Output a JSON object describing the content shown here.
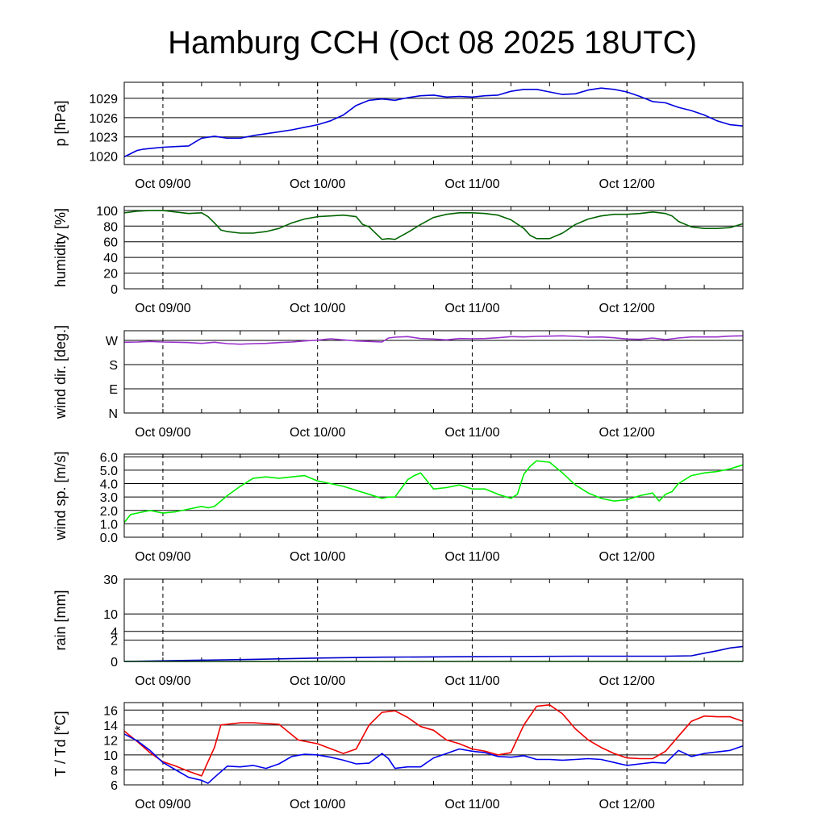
{
  "title": "Hamburg CCH (Oct 08 2025 18UTC)",
  "chart_data": {
    "type": "line",
    "title": "Hamburg CCH (Oct 08 2025 18UTC)",
    "x_range_hours": [
      0,
      96
    ],
    "x_ticks": [
      {
        "hour": 6,
        "label": "Oct 09/00"
      },
      {
        "hour": 30,
        "label": "Oct 10/00"
      },
      {
        "hour": 54,
        "label": "Oct 11/00"
      },
      {
        "hour": 78,
        "label": "Oct 12/00"
      }
    ],
    "panels": [
      {
        "id": "pressure",
        "ylabel": "p [hPa]",
        "ylim": [
          1018.7,
          1031.5
        ],
        "yticks": [
          1020,
          1023,
          1026,
          1029
        ],
        "ytick_labels": [
          "1020",
          "1023",
          "1026",
          "1029"
        ],
        "series": [
          {
            "name": "p",
            "color": "#0000dd",
            "x": [
              0,
              1,
              2,
              3,
              4,
              5,
              6,
              8,
              10,
              11,
              12,
              14,
              16,
              18,
              20,
              22,
              24,
              26,
              28,
              30,
              32,
              34,
              36,
              38,
              40,
              42,
              44,
              46,
              48,
              50,
              52,
              54,
              56,
              58,
              60,
              62,
              64,
              66,
              68,
              70,
              72,
              74,
              76,
              78,
              80,
              82,
              84,
              86,
              88,
              90,
              92,
              94,
              96
            ],
            "values": [
              1019.9,
              1020.4,
              1020.9,
              1021.1,
              1021.2,
              1021.3,
              1021.4,
              1021.5,
              1021.6,
              1022.2,
              1022.8,
              1023.1,
              1022.8,
              1022.8,
              1023.2,
              1023.5,
              1023.8,
              1024.1,
              1024.5,
              1024.9,
              1025.5,
              1026.4,
              1027.9,
              1028.7,
              1028.9,
              1028.7,
              1029.1,
              1029.4,
              1029.5,
              1029.2,
              1029.3,
              1029.2,
              1029.4,
              1029.5,
              1030.1,
              1030.4,
              1030.4,
              1030.0,
              1029.6,
              1029.7,
              1030.3,
              1030.6,
              1030.4,
              1030.0,
              1029.3,
              1028.5,
              1028.3,
              1027.6,
              1027.1,
              1026.4,
              1025.5,
              1024.9,
              1024.7
            ]
          }
        ]
      },
      {
        "id": "humidity",
        "ylabel": "humidity [%]",
        "ylim": [
          0,
          105
        ],
        "yticks": [
          0,
          20,
          40,
          60,
          80,
          100
        ],
        "ytick_labels": [
          "0",
          "20",
          "40",
          "60",
          "80",
          "100"
        ],
        "series": [
          {
            "name": "humidity",
            "color": "#006400",
            "x": [
              0,
              2,
              4,
              6,
              8,
              10,
              12,
              13,
              14,
              15,
              16,
              18,
              20,
              22,
              24,
              26,
              28,
              30,
              32,
              34,
              36,
              37,
              38,
              40,
              41,
              42,
              44,
              46,
              48,
              50,
              52,
              54,
              56,
              58,
              60,
              62,
              63,
              64,
              66,
              68,
              70,
              72,
              74,
              76,
              78,
              80,
              82,
              84,
              85,
              86,
              88,
              90,
              92,
              94,
              96
            ],
            "values": [
              97,
              99,
              100,
              100,
              98,
              96,
              97,
              92,
              84,
              75,
              73,
              71,
              71,
              73,
              77,
              84,
              89,
              92,
              93,
              94,
              92,
              82,
              79,
              63,
              64,
              63,
              72,
              82,
              91,
              95,
              97,
              97,
              96,
              94,
              88,
              77,
              68,
              64,
              64,
              71,
              82,
              89,
              93,
              95,
              95,
              96,
              98,
              96,
              93,
              86,
              79,
              77,
              77,
              78,
              83
            ]
          }
        ]
      },
      {
        "id": "wind_direction",
        "ylabel": "wind dir. [deg.]",
        "ylim": [
          0,
          306
        ],
        "yticks": [
          0,
          90,
          180,
          270
        ],
        "ytick_labels": [
          "N",
          "E",
          "S",
          "W"
        ],
        "series": [
          {
            "name": "wind direction",
            "color": "#9932cc",
            "x": [
              0,
              2,
              4,
              6,
              8,
              10,
              12,
              14,
              16,
              18,
              20,
              22,
              24,
              26,
              28,
              30,
              32,
              34,
              36,
              38,
              40,
              41,
              42,
              44,
              46,
              48,
              50,
              52,
              54,
              56,
              58,
              60,
              62,
              64,
              66,
              68,
              70,
              72,
              74,
              76,
              78,
              80,
              82,
              84,
              86,
              88,
              90,
              92,
              94,
              96
            ],
            "values": [
              263,
              264,
              266,
              264,
              263,
              262,
              259,
              263,
              258,
              256,
              258,
              259,
              262,
              264,
              268,
              271,
              276,
              272,
              268,
              266,
              264,
              279,
              282,
              284,
              277,
              275,
              272,
              277,
              276,
              277,
              280,
              284,
              283,
              285,
              286,
              287,
              285,
              282,
              283,
              280,
              275,
              274,
              279,
              273,
              279,
              283,
              283,
              283,
              286,
              287
            ]
          }
        ]
      },
      {
        "id": "wind_speed",
        "ylabel": "wind sp. [m/s]",
        "ylim": [
          0,
          6.2
        ],
        "yticks": [
          0,
          1,
          2,
          3,
          4,
          5,
          6
        ],
        "ytick_labels": [
          "0.0",
          "1.0",
          "2.0",
          "3.0",
          "4.0",
          "5.0",
          "6.0"
        ],
        "series": [
          {
            "name": "wind speed",
            "color": "#00ee00",
            "x": [
              0,
              1,
              2,
              4,
              6,
              8,
              10,
              12,
              13,
              14,
              16,
              18,
              20,
              22,
              24,
              26,
              28,
              30,
              32,
              34,
              36,
              38,
              40,
              41,
              42,
              44,
              45,
              46,
              48,
              50,
              52,
              54,
              56,
              58,
              60,
              61,
              62,
              63,
              64,
              66,
              68,
              70,
              72,
              74,
              76,
              78,
              80,
              82,
              83,
              84,
              85,
              86,
              88,
              90,
              92,
              94,
              96
            ],
            "values": [
              1.1,
              1.7,
              1.8,
              2.0,
              1.8,
              1.9,
              2.1,
              2.3,
              2.2,
              2.3,
              3.1,
              3.8,
              4.4,
              4.5,
              4.4,
              4.5,
              4.6,
              4.2,
              4.0,
              3.8,
              3.5,
              3.2,
              2.9,
              3.0,
              3.0,
              4.3,
              4.6,
              4.8,
              3.6,
              3.7,
              3.9,
              3.6,
              3.6,
              3.2,
              2.9,
              3.2,
              4.7,
              5.3,
              5.7,
              5.6,
              4.8,
              3.9,
              3.3,
              2.9,
              2.7,
              2.8,
              3.1,
              3.3,
              2.7,
              3.2,
              3.4,
              4.0,
              4.6,
              4.8,
              4.9,
              5.1,
              5.4
            ]
          }
        ]
      },
      {
        "id": "rain",
        "ylabel": "rain [mm]",
        "ylim": [
          0,
          30
        ],
        "scale": "sqrt",
        "yticks": [
          0,
          2,
          4,
          10,
          30
        ],
        "ytick_labels": [
          "0",
          "2",
          "4",
          "10",
          "30"
        ],
        "series": [
          {
            "name": "rain (blue)",
            "color": "#0000cc",
            "x": [
              0,
              20,
              30,
              40,
              54,
              70,
              84,
              88,
              90,
              92,
              94,
              96
            ],
            "values": [
              0,
              0.02,
              0.05,
              0.08,
              0.1,
              0.12,
              0.12,
              0.14,
              0.3,
              0.5,
              0.8,
              1.0
            ]
          },
          {
            "name": "rain (green)",
            "color": "#00aa00",
            "x": [
              0,
              96
            ],
            "values": [
              0,
              0
            ]
          }
        ]
      },
      {
        "id": "temperature",
        "ylabel": "T / Td [*C]",
        "ylim": [
          6,
          17
        ],
        "yticks": [
          6,
          8,
          10,
          12,
          14,
          16
        ],
        "ytick_labels": [
          "6",
          "8",
          "10",
          "12",
          "14",
          "16"
        ],
        "series": [
          {
            "name": "T",
            "color": "#ee0000",
            "x": [
              0,
              2,
              4,
              6,
              8,
              10,
              12,
              14,
              15,
              18,
              20,
              24,
              27,
              30,
              34,
              36,
              38,
              40,
              42,
              44,
              46,
              48,
              50,
              52,
              54,
              56,
              58,
              60,
              62,
              64,
              66,
              68,
              70,
              72,
              74,
              76,
              78,
              80,
              82,
              84,
              86,
              88,
              90,
              92,
              94,
              96
            ],
            "values": [
              13.2,
              11.8,
              10.3,
              9.1,
              8.5,
              7.8,
              7.2,
              11.0,
              14.0,
              14.3,
              14.3,
              14.1,
              12.0,
              11.5,
              10.2,
              10.8,
              14.0,
              15.7,
              15.9,
              15.0,
              13.8,
              13.3,
              12.0,
              11.5,
              10.8,
              10.5,
              10.0,
              10.3,
              14.0,
              16.5,
              16.7,
              15.5,
              13.5,
              12.0,
              11.0,
              10.2,
              9.6,
              9.5,
              9.5,
              10.5,
              12.5,
              14.5,
              15.2,
              15.1,
              15.1,
              14.5
            ]
          },
          {
            "name": "Td",
            "color": "#0000ee",
            "x": [
              0,
              2,
              4,
              5,
              6,
              8,
              10,
              12,
              13,
              14,
              16,
              18,
              20,
              22,
              24,
              26,
              28,
              30,
              32,
              34,
              36,
              38,
              40,
              41,
              42,
              44,
              46,
              48,
              50,
              52,
              54,
              56,
              58,
              60,
              62,
              64,
              66,
              68,
              70,
              72,
              74,
              76,
              78,
              80,
              82,
              84,
              86,
              88,
              90,
              92,
              94,
              96
            ],
            "values": [
              12.8,
              11.9,
              10.6,
              9.8,
              9.0,
              8.0,
              7.0,
              6.6,
              6.2,
              7.0,
              8.5,
              8.4,
              8.6,
              8.2,
              8.8,
              9.8,
              10.1,
              10.0,
              9.7,
              9.3,
              8.8,
              8.9,
              10.2,
              9.5,
              8.2,
              8.4,
              8.4,
              9.6,
              10.2,
              10.8,
              10.5,
              10.3,
              9.8,
              9.7,
              9.9,
              9.4,
              9.4,
              9.3,
              9.4,
              9.5,
              9.4,
              9.0,
              8.6,
              8.8,
              9.0,
              8.9,
              10.6,
              9.8,
              10.2,
              10.4,
              10.6,
              11.2
            ]
          }
        ]
      }
    ]
  }
}
